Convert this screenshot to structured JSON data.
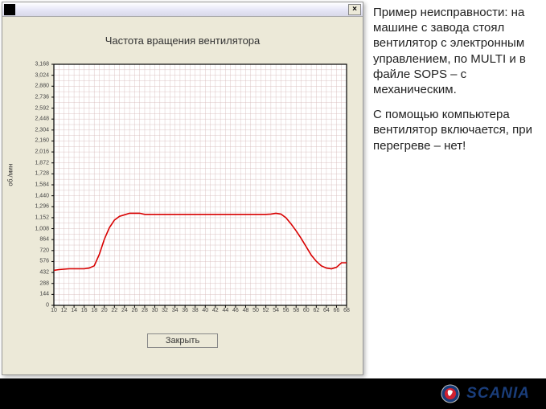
{
  "window": {
    "chart": {
      "title": "Частота вращения вентилятора",
      "ylabel": "об./мин",
      "type": "line",
      "line_color": "#d80000",
      "line_width": 1.6,
      "grid_color": "#d4b8b8",
      "axis_color": "#000000",
      "background_color": "#ffffff",
      "xlim": [
        10,
        68
      ],
      "ylim": [
        0,
        3168
      ],
      "xticks": [
        10,
        12,
        14,
        16,
        18,
        20,
        22,
        24,
        26,
        28,
        30,
        32,
        34,
        36,
        38,
        40,
        42,
        44,
        46,
        48,
        50,
        52,
        54,
        56,
        58,
        60,
        62,
        64,
        66,
        68
      ],
      "yticks": [
        0,
        144,
        288,
        432,
        576,
        720,
        864,
        1008,
        1152,
        1296,
        1440,
        1584,
        1728,
        1872,
        2016,
        2160,
        2304,
        2448,
        2592,
        2736,
        2880,
        3024,
        3168
      ],
      "ytick_labels": [
        "0",
        "144",
        "288",
        "432",
        "576",
        "720",
        "864",
        "1,008",
        "1,152",
        "1,296",
        "1,440",
        "1,584",
        "1,728",
        "1,872",
        "2,016",
        "2,160",
        "2,304",
        "2,448",
        "2,592",
        "2,736",
        "2,880",
        "3,024",
        "3,168"
      ],
      "minor_x_step": 1,
      "minor_y_step": 72,
      "points": [
        [
          10,
          460
        ],
        [
          11,
          470
        ],
        [
          12,
          475
        ],
        [
          13,
          480
        ],
        [
          14,
          480
        ],
        [
          15,
          480
        ],
        [
          16,
          480
        ],
        [
          17,
          490
        ],
        [
          18,
          520
        ],
        [
          19,
          670
        ],
        [
          20,
          870
        ],
        [
          21,
          1020
        ],
        [
          22,
          1120
        ],
        [
          23,
          1170
        ],
        [
          24,
          1190
        ],
        [
          25,
          1210
        ],
        [
          26,
          1210
        ],
        [
          27,
          1210
        ],
        [
          28,
          1195
        ],
        [
          29,
          1195
        ],
        [
          30,
          1195
        ],
        [
          31,
          1195
        ],
        [
          32,
          1195
        ],
        [
          33,
          1195
        ],
        [
          34,
          1195
        ],
        [
          35,
          1195
        ],
        [
          36,
          1195
        ],
        [
          37,
          1195
        ],
        [
          38,
          1195
        ],
        [
          39,
          1195
        ],
        [
          40,
          1195
        ],
        [
          41,
          1195
        ],
        [
          42,
          1195
        ],
        [
          43,
          1195
        ],
        [
          44,
          1195
        ],
        [
          45,
          1195
        ],
        [
          46,
          1195
        ],
        [
          47,
          1195
        ],
        [
          48,
          1195
        ],
        [
          49,
          1195
        ],
        [
          50,
          1195
        ],
        [
          51,
          1195
        ],
        [
          52,
          1195
        ],
        [
          53,
          1200
        ],
        [
          54,
          1210
        ],
        [
          55,
          1200
        ],
        [
          56,
          1150
        ],
        [
          57,
          1070
        ],
        [
          58,
          980
        ],
        [
          59,
          880
        ],
        [
          60,
          770
        ],
        [
          61,
          660
        ],
        [
          62,
          580
        ],
        [
          63,
          520
        ],
        [
          64,
          490
        ],
        [
          65,
          480
        ],
        [
          66,
          500
        ],
        [
          67,
          560
        ],
        [
          68,
          560
        ]
      ]
    },
    "close_button_label": "Закрыть"
  },
  "text": {
    "para1": "Пример неисправности: на машине с завода стоял вентилятор с электронным управлением, по MULTI и в файле SOPS – с механическим.",
    "para2": "С помощью компьютера вентилятор включается, при перегреве – нет!"
  },
  "brand": {
    "name": "SCANIA",
    "color": "#1a3d7a"
  }
}
